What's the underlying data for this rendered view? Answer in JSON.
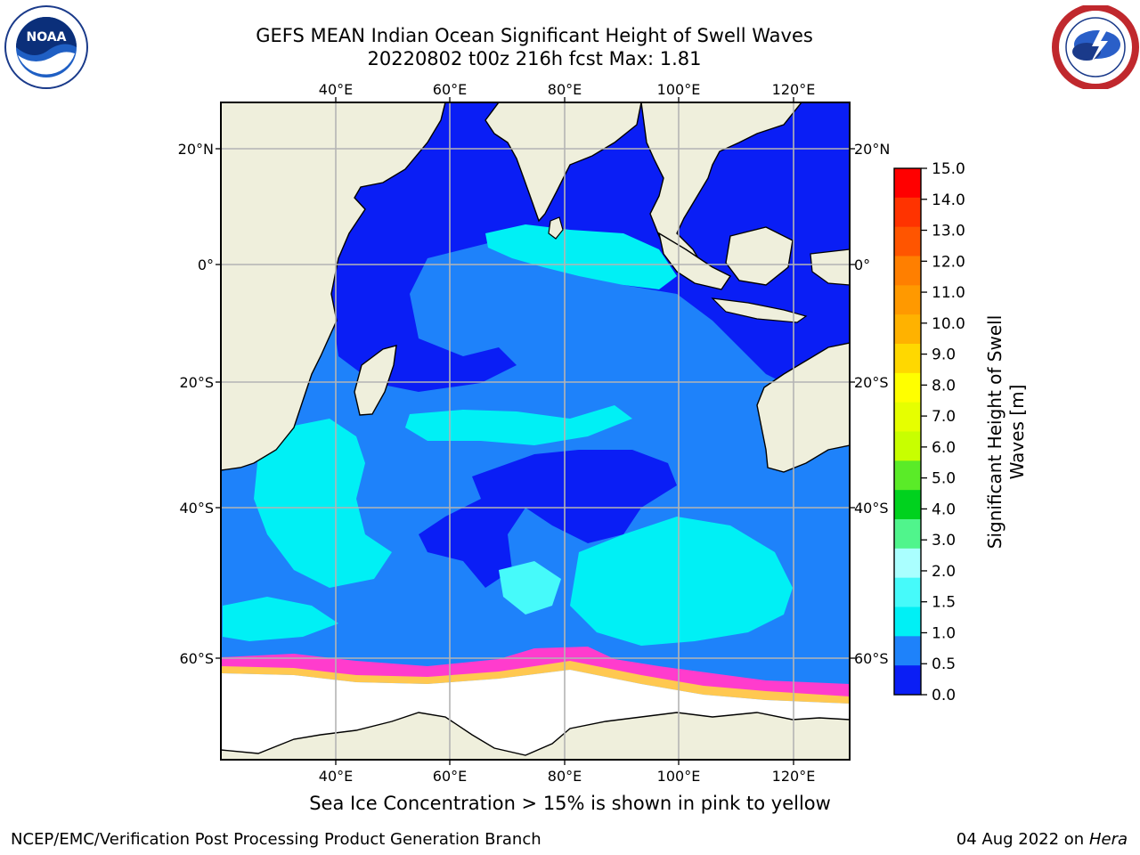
{
  "header": {
    "title_line1": "GEFS MEAN Indian Ocean Significant Height of Swell Waves",
    "title_line2": "20220802 t00z 216h fcst   Max: 1.81"
  },
  "logos": {
    "left": "noaa-logo",
    "right": "nws-logo"
  },
  "map": {
    "lon_labels": [
      "40°E",
      "60°E",
      "80°E",
      "100°E",
      "120°E"
    ],
    "lat_labels": [
      "20°N",
      "0°",
      "20°S",
      "40°S",
      "60°S"
    ],
    "colors": {
      "land": "#efefdc",
      "ocean_low": "#0a1ef5",
      "ocean_mid": "#1e82fa",
      "ocean_high": "#00f0f5",
      "ocean_higher": "#46fafa",
      "ice_pink": "#ff3ccd",
      "ice_yellow": "#ffc850",
      "grid": "#b4b4b4"
    }
  },
  "colorbar": {
    "title": "Significant Height of Swell Waves [m]",
    "title_line1": "Significant Height of Swell",
    "title_line2": "Waves [m]",
    "tick_labels": [
      "15.0",
      "14.0",
      "13.0",
      "12.0",
      "11.0",
      "10.0",
      "9.0",
      "8.0",
      "7.0",
      "6.0",
      "5.0",
      "4.0",
      "3.0",
      "2.0",
      "1.5",
      "1.0",
      "0.5",
      "0.0"
    ],
    "colors": [
      "#ff0000",
      "#ff3300",
      "#ff5500",
      "#ff7f00",
      "#ff9900",
      "#ffb200",
      "#ffd800",
      "#ffff00",
      "#e6ff00",
      "#c8ff00",
      "#5aeb28",
      "#00d21e",
      "#50f58c",
      "#aaffff",
      "#46fafa",
      "#00f0f5",
      "#1e82fa",
      "#0a1ef5"
    ]
  },
  "footer": {
    "note": "Sea Ice Concentration > 15% is shown in pink to yellow",
    "credit": "NCEP/EMC/Verification Post Processing Product Generation Branch",
    "date_prefix": "04 Aug 2022 on",
    "date_host": "Hera"
  }
}
